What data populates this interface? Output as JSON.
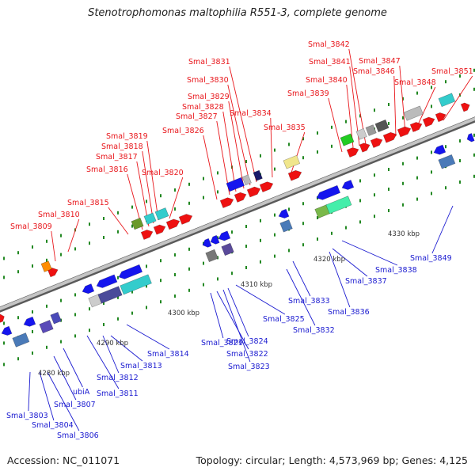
{
  "title": "Stenotrophomonas maltophilia R551-3, complete genome",
  "accession": "Accession: NC_011071",
  "summary": "Topology: circular; Length: 4,573,969 bp; Genes: 4,125",
  "colors": {
    "backbone": "#888888",
    "upper_label": "#e8161b",
    "lower_label": "#1a1ad0",
    "forward_gene": "#ee1111",
    "reverse_gene": "#1515ee",
    "tick": "#228822"
  },
  "scale_labels": [
    "4280 kbp",
    "4290 kbp",
    "4300 kbp",
    "4310 kbp",
    "4320 kbp",
    "4330 kbp"
  ],
  "upper_labels": [
    "Smal_3809",
    "Smal_3810",
    "Smal_3815",
    "Smal_3816",
    "Smal_3817",
    "Smal_3818",
    "Smal_3819",
    "Smal_3820",
    "Smal_3826",
    "Smal_3827",
    "Smal_3828",
    "Smal_3829",
    "Smal_3830",
    "Smal_3831",
    "Smal_3834",
    "Smal_3835",
    "Smal_3839",
    "Smal_3840",
    "Smal_3841",
    "Smal_3842",
    "Smal_3846",
    "Smal_3847",
    "Smal_3848",
    "Smal_3851"
  ],
  "lower_labels": [
    "Smal_3803",
    "Smal_3804",
    "Smal_3806",
    "Smal_3807",
    "ubiA",
    "Smal_3811",
    "Smal_3812",
    "Smal_3813",
    "Smal_3814",
    "Smal_3821",
    "Smal_3822",
    "Smal_3823",
    "Smal_3824",
    "Smal_3825",
    "Smal_3832",
    "Smal_3833",
    "Smal_3836",
    "Smal_3837",
    "Smal_3838",
    "Smal_3849"
  ]
}
